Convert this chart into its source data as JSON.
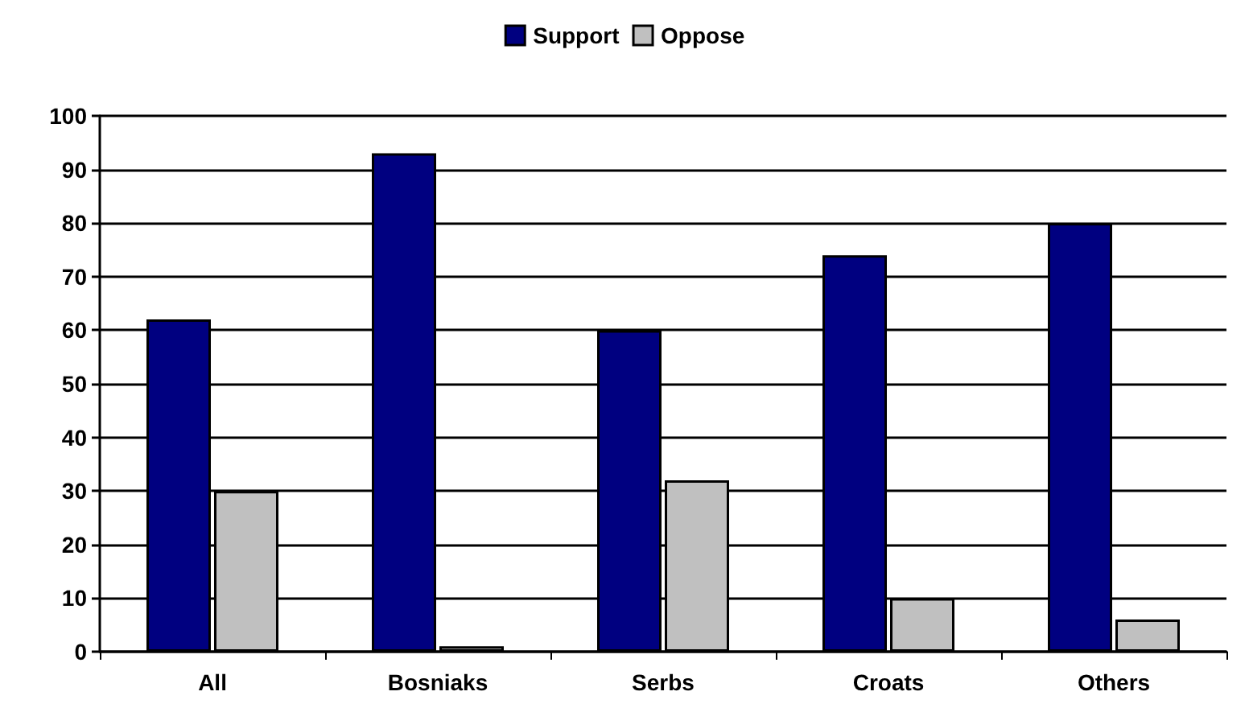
{
  "chart_data": {
    "type": "bar",
    "categories": [
      "All",
      "Bosniaks",
      "Serbs",
      "Croats",
      "Others"
    ],
    "series": [
      {
        "name": "Support",
        "color": "#000080",
        "values": [
          62,
          93,
          60,
          74,
          80
        ]
      },
      {
        "name": "Oppose",
        "color": "#c0c0c0",
        "values": [
          30,
          1,
          32,
          10,
          6
        ]
      }
    ],
    "ylim": [
      0,
      100
    ],
    "yticks": [
      0,
      10,
      20,
      30,
      40,
      50,
      60,
      70,
      80,
      90,
      100
    ],
    "grid": "y",
    "legend": "top"
  }
}
